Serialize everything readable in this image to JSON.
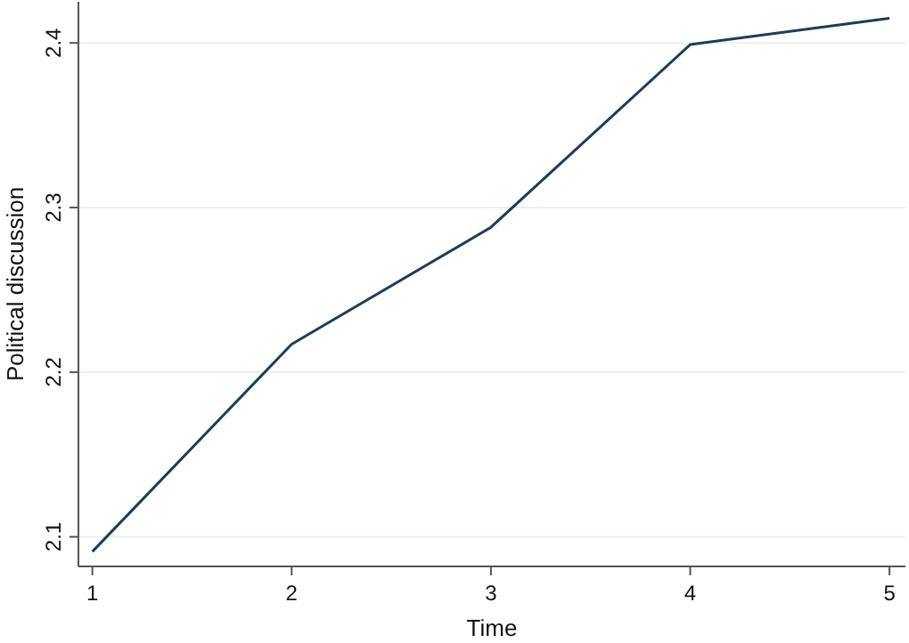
{
  "chart_data": {
    "type": "line",
    "xlabel": "Time",
    "ylabel": "Political discussion",
    "x": [
      1,
      2,
      3,
      4,
      5
    ],
    "series": [
      {
        "color": "#1a3d5c",
        "values": [
          2.091,
          2.217,
          2.288,
          2.399,
          2.415
        ]
      }
    ],
    "xlim": [
      0.93,
      5.08
    ],
    "xticks": [
      1,
      2,
      3,
      4,
      5
    ],
    "ylim": [
      2.082,
      2.425
    ],
    "yticks": [
      2.1,
      2.2,
      2.3,
      2.4
    ],
    "grid": "y",
    "marker": "none",
    "line_style": "solid"
  }
}
